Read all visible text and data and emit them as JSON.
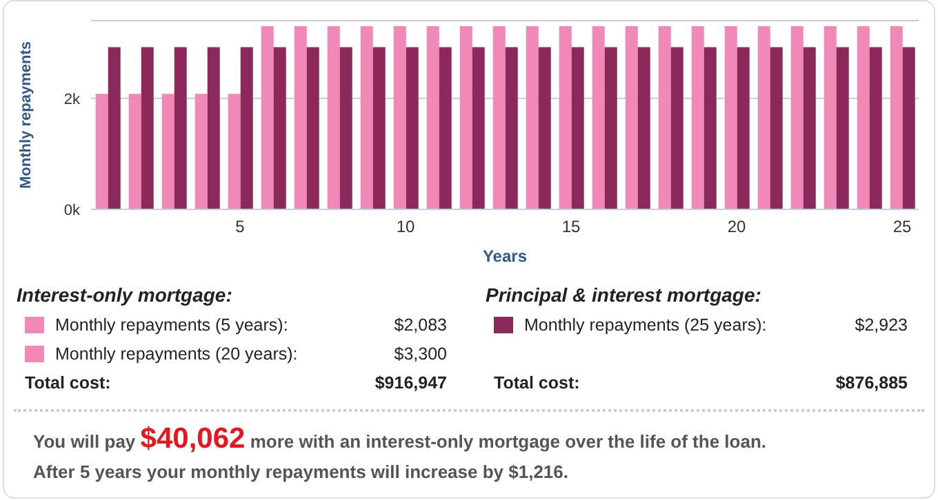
{
  "chart_data": {
    "type": "bar",
    "xlabel": "Years",
    "ylabel": "Monthly repayments",
    "categories": [
      null,
      null,
      null,
      null,
      "5",
      null,
      null,
      null,
      null,
      "10",
      null,
      null,
      null,
      null,
      "15",
      null,
      null,
      null,
      null,
      "20",
      null,
      null,
      null,
      null,
      "25"
    ],
    "series": [
      {
        "color": "#f088b8",
        "values": [
          2083,
          2083,
          2083,
          2083,
          2083,
          3300,
          3300,
          3300,
          3300,
          3300,
          3300,
          3300,
          3300,
          3300,
          3300,
          3300,
          3300,
          3300,
          3300,
          3300,
          3300,
          3300,
          3300,
          3300,
          3300
        ]
      },
      {
        "color": "#8b2a5a",
        "values": [
          2923,
          2923,
          2923,
          2923,
          2923,
          2923,
          2923,
          2923,
          2923,
          2923,
          2923,
          2923,
          2923,
          2923,
          2923,
          2923,
          2923,
          2923,
          2923,
          2923,
          2923,
          2923,
          2923,
          2923,
          2923
        ]
      }
    ],
    "ylim": [
      0,
      3400
    ],
    "yticks": [
      {
        "value": 0,
        "label": "0k"
      },
      {
        "value": 2000,
        "label": "2k"
      }
    ],
    "grid": "y",
    "annotations": [
      "Interest-only mortgage:",
      "Monthly repayments (5 years):",
      "$2,083",
      "Monthly repayments (20 years):",
      "$3,300",
      "Total cost:",
      "$916,947",
      "Principal & interest mortgage:",
      "Monthly repayments (25 years):",
      "$2,923",
      "Total cost:",
      "$876,885",
      "You will pay",
      "$40,062",
      "more with an interest-only mortgage over the life of the loan.",
      "After 5 years your monthly repayments will increase by $1,216."
    ]
  }
}
